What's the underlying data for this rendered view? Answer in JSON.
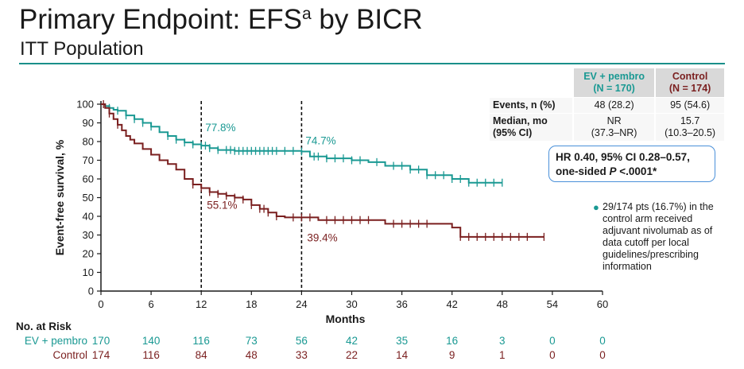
{
  "title": {
    "main": "Primary Endpoint: EFS",
    "sup": "a",
    "rest": " by BICR"
  },
  "subtitle": "ITT Population",
  "colors": {
    "ev": "#1a9993",
    "control": "#7a1f1f",
    "rule": "#1a8f8a",
    "box": "#4a90d9"
  },
  "stats_table": {
    "col1": [
      "EV + pembro",
      "(N = 170)"
    ],
    "col2": [
      "Control",
      "(N = 174)"
    ],
    "rows": [
      {
        "label": [
          "Events, n (%)"
        ],
        "ev": [
          "48 (28.2)"
        ],
        "control": [
          "95 (54.6)"
        ]
      },
      {
        "label": [
          "Median, mo",
          "(95% CI)"
        ],
        "ev": [
          "NR",
          "(37.3–NR)"
        ],
        "control": [
          "15.7",
          "(10.3–20.5)"
        ]
      }
    ]
  },
  "hr_box": {
    "line1": "HR 0.40, 95% CI 0.28–0.57,",
    "line2_pre": "one-sided ",
    "line2_p": "P",
    "line2_post": " <.0001*"
  },
  "footnote": "29/174 pts (16.7%) in the control arm received adjuvant nivolumab as of data cutoff per local guidelines/prescribing information",
  "risk_table": {
    "heading": "No. at Risk",
    "rows": [
      {
        "name": "EV + pembro",
        "values": [
          "170",
          "140",
          "116",
          "73",
          "56",
          "42",
          "35",
          "16",
          "3",
          "0",
          "0"
        ]
      },
      {
        "name": "Control",
        "values": [
          "174",
          "116",
          "84",
          "48",
          "33",
          "22",
          "14",
          "9",
          "1",
          "0",
          "0"
        ]
      }
    ]
  },
  "chart_data": {
    "type": "line",
    "xlabel": "Months",
    "ylabel": "Event-free survival, %",
    "xlim": [
      0,
      60
    ],
    "ylim": [
      0,
      100
    ],
    "xticks": [
      0,
      6,
      12,
      18,
      24,
      30,
      36,
      42,
      48,
      54,
      60
    ],
    "yticks": [
      0,
      10,
      20,
      30,
      40,
      50,
      60,
      70,
      80,
      90,
      100
    ],
    "landmarks": [
      12,
      24
    ],
    "annotations": [
      {
        "series": "EV + pembro",
        "x": 12,
        "text": "77.8%"
      },
      {
        "series": "EV + pembro",
        "x": 24,
        "text": "74.7%"
      },
      {
        "series": "Control",
        "x": 12,
        "text": "55.1%"
      },
      {
        "series": "Control",
        "x": 24,
        "text": "39.4%"
      }
    ],
    "series": [
      {
        "name": "EV + pembro",
        "points": [
          [
            0,
            100
          ],
          [
            0.5,
            99
          ],
          [
            1,
            98
          ],
          [
            1.5,
            97
          ],
          [
            2,
            96.5
          ],
          [
            3,
            94
          ],
          [
            4,
            92
          ],
          [
            5,
            90
          ],
          [
            6,
            88
          ],
          [
            7,
            85
          ],
          [
            8,
            83
          ],
          [
            9,
            81
          ],
          [
            10,
            79.5
          ],
          [
            11,
            78.5
          ],
          [
            12,
            77.8
          ],
          [
            13,
            76.5
          ],
          [
            14,
            75.5
          ],
          [
            16,
            75
          ],
          [
            18,
            75
          ],
          [
            22,
            75
          ],
          [
            24,
            74.7
          ],
          [
            25,
            72
          ],
          [
            27,
            71
          ],
          [
            30,
            70
          ],
          [
            32,
            69
          ],
          [
            34,
            67
          ],
          [
            37,
            65
          ],
          [
            39,
            62
          ],
          [
            42,
            60
          ],
          [
            44,
            58
          ],
          [
            48,
            58
          ]
        ],
        "censor": [
          1,
          2,
          3,
          4,
          5,
          6,
          8,
          9,
          10,
          11,
          12,
          12.5,
          13,
          14,
          15,
          15.5,
          16,
          16.5,
          17,
          17.5,
          18,
          18.5,
          19,
          19.5,
          20,
          20.5,
          21,
          22,
          23,
          24,
          25.5,
          26,
          27,
          28,
          29,
          30,
          31,
          33,
          35,
          36,
          37,
          38,
          39,
          40,
          41,
          42,
          43,
          44,
          45,
          46,
          47,
          48
        ]
      },
      {
        "name": "Control",
        "points": [
          [
            0,
            100
          ],
          [
            0.5,
            98
          ],
          [
            1,
            95
          ],
          [
            1.5,
            92
          ],
          [
            2,
            89
          ],
          [
            2.5,
            86
          ],
          [
            3,
            83
          ],
          [
            3.5,
            81
          ],
          [
            4,
            79
          ],
          [
            5,
            76
          ],
          [
            6,
            73
          ],
          [
            7,
            70
          ],
          [
            8,
            68
          ],
          [
            9,
            65
          ],
          [
            10,
            60
          ],
          [
            11,
            57
          ],
          [
            12,
            55.1
          ],
          [
            13,
            53
          ],
          [
            14,
            52
          ],
          [
            15,
            51
          ],
          [
            16,
            50
          ],
          [
            17,
            49
          ],
          [
            18,
            46
          ],
          [
            19,
            44
          ],
          [
            20,
            42
          ],
          [
            21,
            40
          ],
          [
            22,
            39.4
          ],
          [
            24,
            39.4
          ],
          [
            26,
            38
          ],
          [
            33,
            38
          ],
          [
            34,
            36
          ],
          [
            40,
            36
          ],
          [
            42,
            34
          ],
          [
            43,
            29
          ],
          [
            53,
            29
          ]
        ],
        "censor": [
          0.3,
          1,
          2,
          11,
          12,
          13,
          14,
          15,
          16,
          17,
          18,
          19,
          19.5,
          20,
          21,
          23,
          24,
          25,
          27,
          28,
          29,
          30,
          31,
          32,
          35,
          36,
          37,
          38,
          39,
          43,
          44,
          45,
          46,
          47,
          48,
          49,
          50,
          51,
          53
        ]
      }
    ]
  }
}
